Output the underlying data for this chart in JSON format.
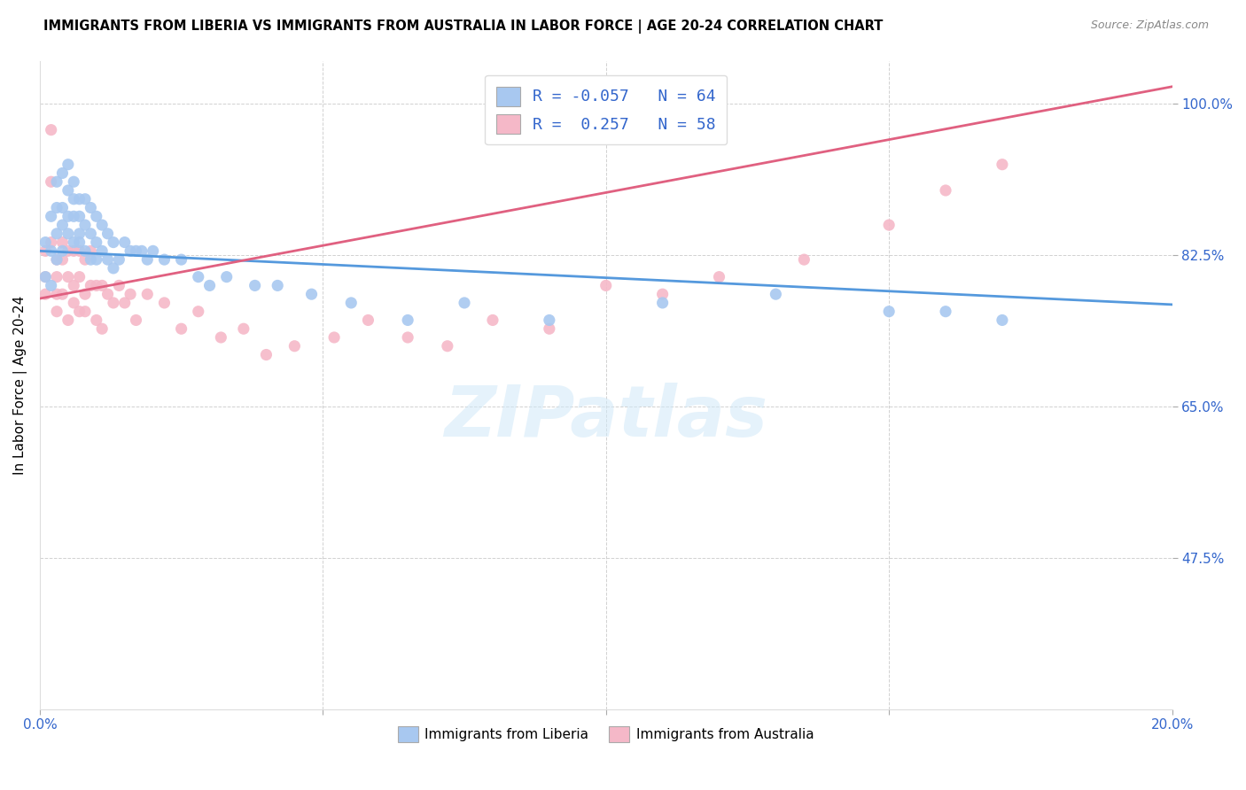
{
  "title": "IMMIGRANTS FROM LIBERIA VS IMMIGRANTS FROM AUSTRALIA IN LABOR FORCE | AGE 20-24 CORRELATION CHART",
  "source": "Source: ZipAtlas.com",
  "ylabel": "In Labor Force | Age 20-24",
  "xlim": [
    0.0,
    0.2
  ],
  "ylim": [
    0.3,
    1.05
  ],
  "xticks": [
    0.0,
    0.05,
    0.1,
    0.15,
    0.2
  ],
  "xticklabels": [
    "0.0%",
    "",
    "",
    "",
    "20.0%"
  ],
  "yticks": [
    0.475,
    0.65,
    0.825,
    1.0
  ],
  "yticklabels": [
    "47.5%",
    "65.0%",
    "82.5%",
    "100.0%"
  ],
  "blue_R": "-0.057",
  "blue_N": "64",
  "pink_R": "0.257",
  "pink_N": "58",
  "blue_color": "#a8c8f0",
  "pink_color": "#f5b8c8",
  "blue_line_color": "#5599dd",
  "pink_line_color": "#e06080",
  "watermark": "ZIPatlas",
  "legend_label_blue": "Immigrants from Liberia",
  "legend_label_pink": "Immigrants from Australia",
  "blue_scatter_x": [
    0.001,
    0.001,
    0.002,
    0.002,
    0.002,
    0.003,
    0.003,
    0.003,
    0.003,
    0.004,
    0.004,
    0.004,
    0.004,
    0.005,
    0.005,
    0.005,
    0.005,
    0.006,
    0.006,
    0.006,
    0.006,
    0.007,
    0.007,
    0.007,
    0.007,
    0.008,
    0.008,
    0.008,
    0.009,
    0.009,
    0.009,
    0.01,
    0.01,
    0.01,
    0.011,
    0.011,
    0.012,
    0.012,
    0.013,
    0.013,
    0.014,
    0.015,
    0.016,
    0.017,
    0.018,
    0.019,
    0.02,
    0.022,
    0.025,
    0.028,
    0.03,
    0.033,
    0.038,
    0.042,
    0.048,
    0.055,
    0.065,
    0.075,
    0.09,
    0.11,
    0.13,
    0.15,
    0.16,
    0.17
  ],
  "blue_scatter_y": [
    0.84,
    0.8,
    0.87,
    0.83,
    0.79,
    0.91,
    0.88,
    0.85,
    0.82,
    0.86,
    0.83,
    0.88,
    0.92,
    0.85,
    0.87,
    0.9,
    0.93,
    0.84,
    0.87,
    0.89,
    0.91,
    0.85,
    0.87,
    0.84,
    0.89,
    0.83,
    0.86,
    0.89,
    0.82,
    0.85,
    0.88,
    0.82,
    0.84,
    0.87,
    0.83,
    0.86,
    0.82,
    0.85,
    0.81,
    0.84,
    0.82,
    0.84,
    0.83,
    0.83,
    0.83,
    0.82,
    0.83,
    0.82,
    0.82,
    0.8,
    0.79,
    0.8,
    0.79,
    0.79,
    0.78,
    0.77,
    0.75,
    0.77,
    0.75,
    0.77,
    0.78,
    0.76,
    0.76,
    0.75
  ],
  "pink_scatter_x": [
    0.001,
    0.001,
    0.001,
    0.002,
    0.002,
    0.002,
    0.003,
    0.003,
    0.003,
    0.003,
    0.004,
    0.004,
    0.004,
    0.005,
    0.005,
    0.005,
    0.006,
    0.006,
    0.006,
    0.007,
    0.007,
    0.007,
    0.008,
    0.008,
    0.008,
    0.009,
    0.009,
    0.01,
    0.01,
    0.011,
    0.011,
    0.012,
    0.013,
    0.014,
    0.015,
    0.016,
    0.017,
    0.019,
    0.022,
    0.025,
    0.028,
    0.032,
    0.036,
    0.04,
    0.045,
    0.052,
    0.058,
    0.065,
    0.072,
    0.08,
    0.09,
    0.1,
    0.11,
    0.12,
    0.135,
    0.15,
    0.16,
    0.17
  ],
  "pink_scatter_y": [
    0.8,
    0.83,
    0.78,
    0.97,
    0.91,
    0.84,
    0.78,
    0.82,
    0.76,
    0.8,
    0.84,
    0.78,
    0.82,
    0.8,
    0.75,
    0.83,
    0.79,
    0.83,
    0.77,
    0.8,
    0.83,
    0.76,
    0.78,
    0.82,
    0.76,
    0.79,
    0.83,
    0.79,
    0.75,
    0.79,
    0.74,
    0.78,
    0.77,
    0.79,
    0.77,
    0.78,
    0.75,
    0.78,
    0.77,
    0.74,
    0.76,
    0.73,
    0.74,
    0.71,
    0.72,
    0.73,
    0.75,
    0.73,
    0.72,
    0.75,
    0.74,
    0.79,
    0.78,
    0.8,
    0.82,
    0.86,
    0.9,
    0.93
  ],
  "blue_trend_x": [
    0.0,
    0.2
  ],
  "blue_trend_y": [
    0.83,
    0.768
  ],
  "pink_trend_x": [
    0.0,
    0.2
  ],
  "pink_trend_y": [
    0.775,
    1.02
  ]
}
